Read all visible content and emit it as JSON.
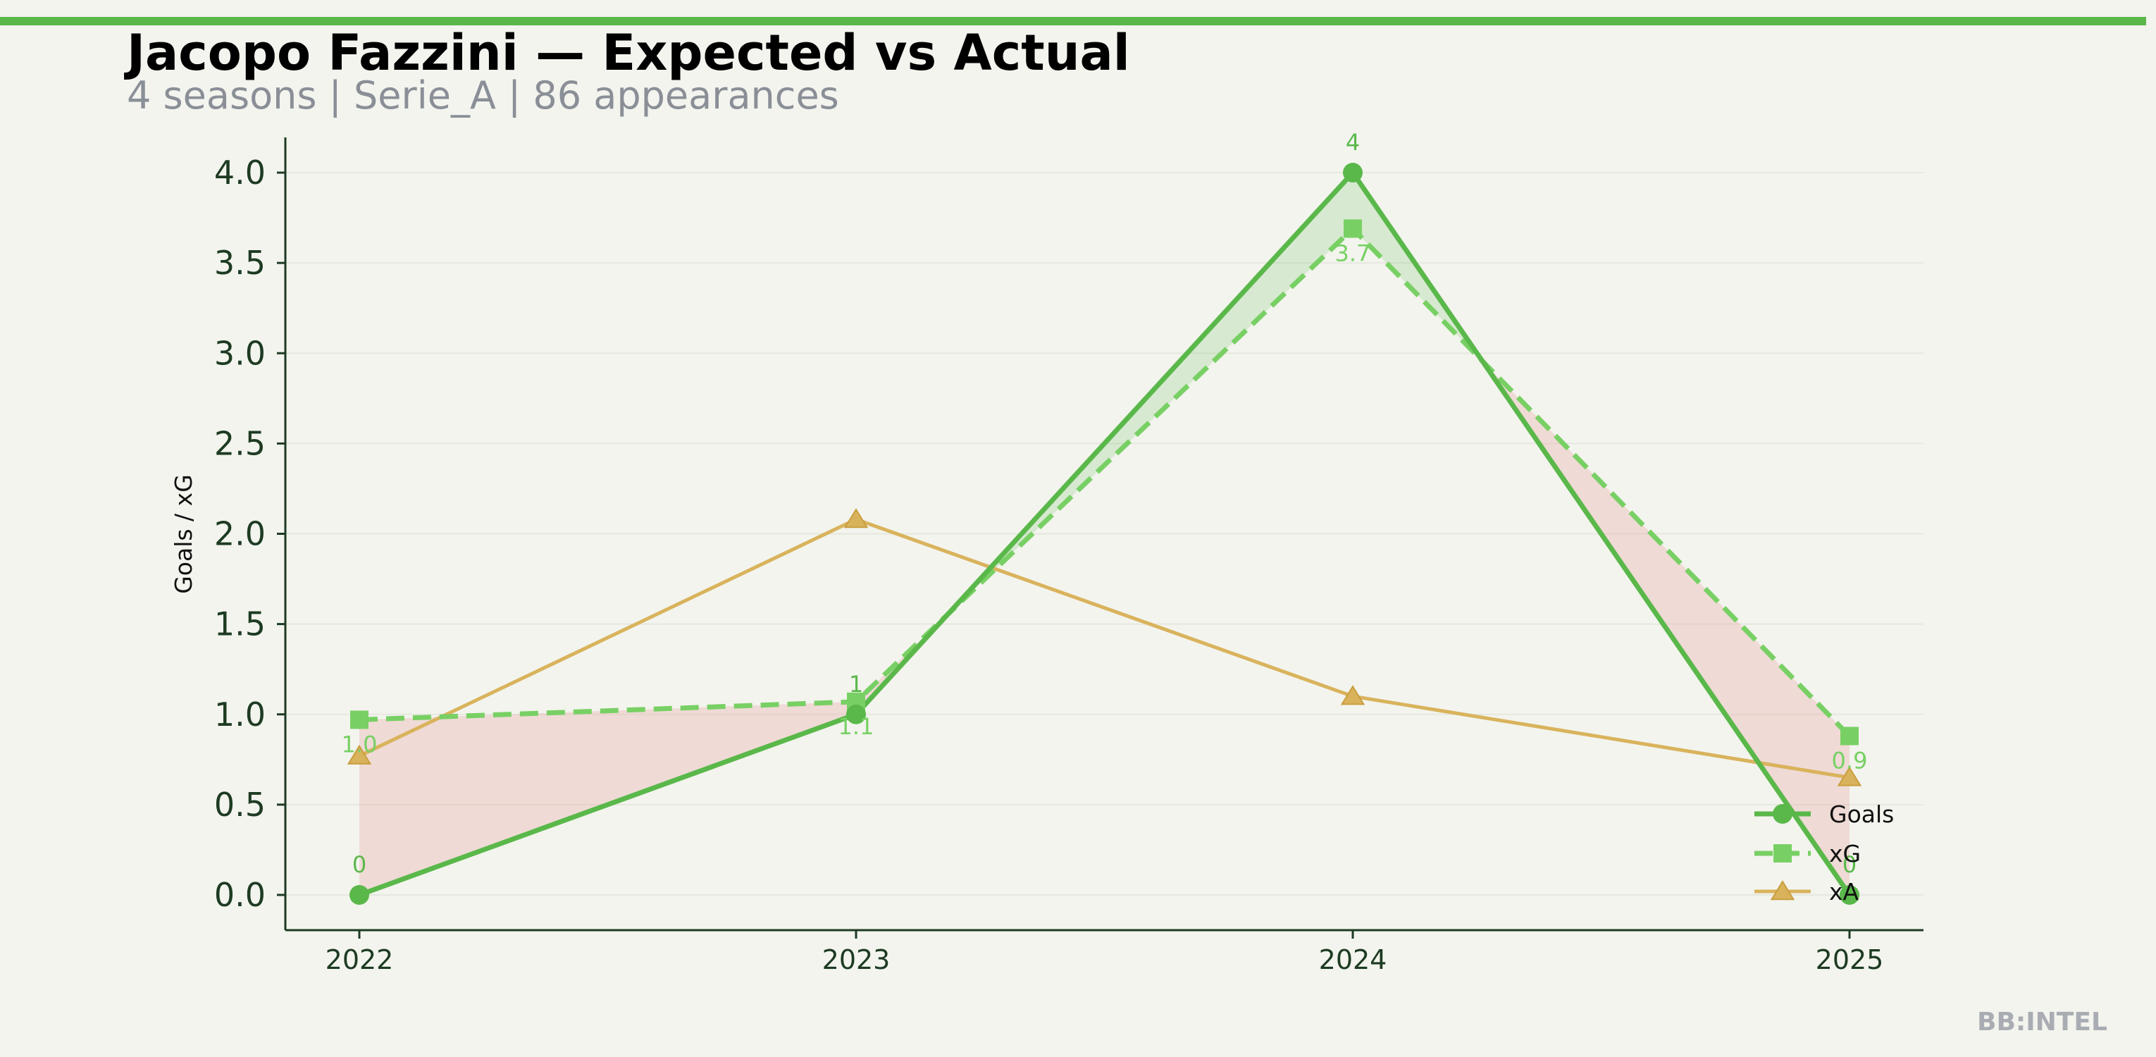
{
  "header": {
    "title": "Jacopo Fazzini — Expected vs Actual",
    "subtitle": "4 seasons | Serie_A | 86 appearances",
    "watermark": "BB:INTEL"
  },
  "colors": {
    "accent_bar": "#5ab84a",
    "goals": "#5ab84a",
    "xg": "#78d064",
    "xa": "#d9b35c",
    "over_fill": "#5ab84a",
    "under_fill": "#e7a09a",
    "axis": "#1d3b22",
    "background": "#f3f4ee"
  },
  "chart_data": {
    "type": "line",
    "categories": [
      "2022",
      "2023",
      "2024",
      "2025"
    ],
    "ylabel": "Goals / xG",
    "xlabel": "",
    "ylim": [
      -0.2,
      4.2
    ],
    "yticks": [
      "0.0",
      "0.5",
      "1.0",
      "1.5",
      "2.0",
      "2.5",
      "3.0",
      "3.5",
      "4.0"
    ],
    "grid": "horizontal, faint",
    "legend_position": "lower-right",
    "series": [
      {
        "name": "Goals",
        "values": [
          0,
          1,
          4,
          0
        ],
        "labels": [
          "0",
          "1",
          "4",
          "0"
        ],
        "marker": "circle",
        "style": "solid"
      },
      {
        "name": "xG",
        "values": [
          0.97,
          1.07,
          3.69,
          0.88
        ],
        "labels": [
          "1.0",
          "1.1",
          "3.7",
          "0.9"
        ],
        "marker": "square",
        "style": "dashed"
      },
      {
        "name": "xA",
        "values": [
          0.77,
          2.08,
          1.1,
          0.65
        ],
        "marker": "triangle",
        "style": "solid"
      }
    ]
  }
}
